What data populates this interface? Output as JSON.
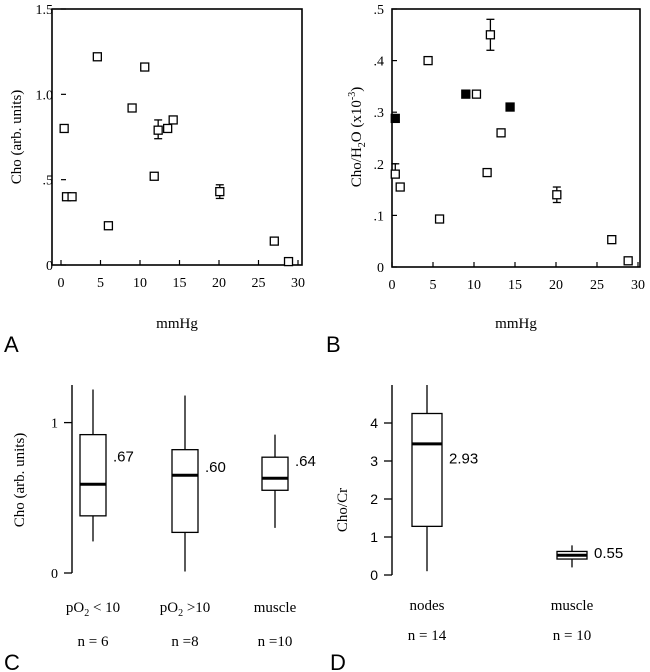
{
  "chart_data": [
    {
      "panel": "A",
      "type": "scatter",
      "xlabel": "mmHg",
      "ylabel": "Cho (arb. units)",
      "xlim": [
        0,
        30
      ],
      "ylim": [
        0,
        1.5
      ],
      "xticks": [
        0,
        5,
        10,
        15,
        20,
        25,
        30
      ],
      "xtick_labels": [
        "0",
        "5",
        "10",
        "15",
        "20",
        "25",
        "30"
      ],
      "yticks": [
        0,
        0.5,
        1.0,
        1.5
      ],
      "ytick_labels": [
        "0",
        ".5",
        "1.0",
        "1.5"
      ],
      "grid": false,
      "series": [
        {
          "marker": "open-square",
          "points": [
            {
              "x": 0.4,
              "y": 0.8
            },
            {
              "x": 0.7,
              "y": 0.4
            },
            {
              "x": 1.4,
              "y": 0.4
            },
            {
              "x": 4.6,
              "y": 1.22
            },
            {
              "x": 6.0,
              "y": 0.23
            },
            {
              "x": 9.0,
              "y": 0.92
            },
            {
              "x": 10.6,
              "y": 1.16
            },
            {
              "x": 11.8,
              "y": 0.52
            },
            {
              "x": 12.3,
              "y": 0.79,
              "err": [
                0.05,
                0.06
              ]
            },
            {
              "x": 13.5,
              "y": 0.8
            },
            {
              "x": 14.2,
              "y": 0.85
            },
            {
              "x": 20.1,
              "y": 0.43,
              "err": [
                0.04,
                0.04
              ]
            },
            {
              "x": 27.0,
              "y": 0.14
            },
            {
              "x": 28.8,
              "y": 0.02
            }
          ]
        }
      ]
    },
    {
      "panel": "B",
      "type": "scatter",
      "xlabel": "mmHg",
      "ylabel_prefix": "Cho/H",
      "ylabel_sub": "2",
      "ylabel_mid": "O (x10",
      "ylabel_sup": "-3",
      "ylabel_suffix": ")",
      "xlim": [
        0,
        30
      ],
      "ylim": [
        0,
        0.5
      ],
      "xticks": [
        0,
        5,
        10,
        15,
        20,
        25,
        30
      ],
      "xtick_labels": [
        "0",
        "5",
        "10",
        "15",
        "20",
        "25",
        "30"
      ],
      "yticks": [
        0,
        0.1,
        0.2,
        0.3,
        0.4,
        0.5
      ],
      "ytick_labels": [
        "0",
        ".1",
        ".2",
        ".3",
        ".4",
        ".5"
      ],
      "grid": false,
      "series": [
        {
          "marker": "open-square",
          "points": [
            {
              "x": 0.4,
              "y": 0.18,
              "err": [
                0.0,
                0.02
              ]
            },
            {
              "x": 1.0,
              "y": 0.155
            },
            {
              "x": 4.4,
              "y": 0.4
            },
            {
              "x": 5.8,
              "y": 0.093
            },
            {
              "x": 10.3,
              "y": 0.335
            },
            {
              "x": 11.6,
              "y": 0.183
            },
            {
              "x": 12.0,
              "y": 0.45,
              "err": [
                0.03,
                0.03
              ]
            },
            {
              "x": 13.3,
              "y": 0.26
            },
            {
              "x": 20.1,
              "y": 0.14,
              "err": [
                0.015,
                0.015
              ]
            },
            {
              "x": 26.8,
              "y": 0.053
            },
            {
              "x": 28.8,
              "y": 0.012
            }
          ]
        },
        {
          "marker": "filled-square",
          "points": [
            {
              "x": 0.4,
              "y": 0.288
            },
            {
              "x": 9.0,
              "y": 0.335
            },
            {
              "x": 14.4,
              "y": 0.31
            }
          ]
        }
      ]
    },
    {
      "panel": "C",
      "type": "box",
      "ylabel": "Cho (arb. units)",
      "ylim": [
        0,
        1.25
      ],
      "yticks": [
        0,
        1
      ],
      "ytick_labels": [
        "0",
        "1"
      ],
      "boxes": [
        {
          "label_prefix": "pO",
          "label_sub": "2",
          "label_suffix": " < 10",
          "n": "n = 6",
          "min": 0.21,
          "q1": 0.38,
          "median": 0.59,
          "q3": 0.92,
          "max": 1.22,
          "value_label": ".67"
        },
        {
          "label_prefix": "pO",
          "label_sub": "2",
          "label_suffix": " >10",
          "n": "n =8",
          "min": 0.01,
          "q1": 0.27,
          "median": 0.65,
          "q3": 0.82,
          "max": 1.18,
          "value_label": ".60"
        },
        {
          "label_prefix": "muscle",
          "label_sub": "",
          "label_suffix": "",
          "n": "n =10",
          "min": 0.3,
          "q1": 0.55,
          "median": 0.63,
          "q3": 0.77,
          "max": 0.92,
          "value_label": ".64"
        }
      ]
    },
    {
      "panel": "D",
      "type": "box",
      "ylabel": "Cho/Cr",
      "ylim": [
        0,
        5
      ],
      "yticks": [
        0,
        1,
        2,
        3,
        4
      ],
      "ytick_labels": [
        "0",
        "1",
        "2",
        "3",
        "4"
      ],
      "boxes": [
        {
          "label_prefix": "nodes",
          "label_sub": "",
          "label_suffix": "",
          "n": "n = 14",
          "min": 0.1,
          "q1": 1.28,
          "median": 3.45,
          "q3": 4.25,
          "max": 5.0,
          "value_label": "2.93"
        },
        {
          "label_prefix": "muscle",
          "label_sub": "",
          "label_suffix": "",
          "n": "n = 10",
          "min": 0.2,
          "q1": 0.42,
          "median": 0.52,
          "q3": 0.62,
          "max": 0.78,
          "value_label": "0.55"
        }
      ]
    }
  ],
  "panel_letters": [
    "A",
    "B",
    "C",
    "D"
  ]
}
